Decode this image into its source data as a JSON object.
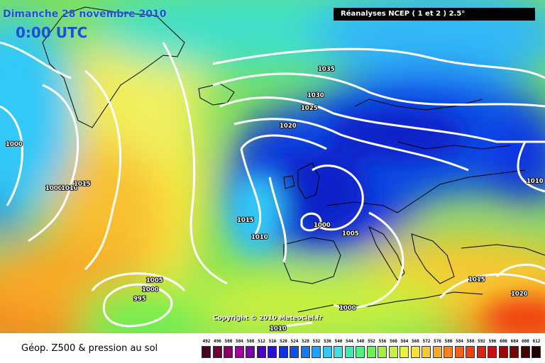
{
  "header": {
    "date": "Dimanche 28 novembre 2010",
    "time": "0:00 UTC",
    "source": "Réanalyses NCEP ( 1 et 2 ) 2.5°"
  },
  "copyright": "Copyright © 2010 Meteociel.fr",
  "footer": {
    "label": "Géop. Z500 & pression au sol"
  },
  "isobar_labels": [
    "1035",
    "1030",
    "1025",
    "1020",
    "1015",
    "1010",
    "1005",
    "1000",
    "995"
  ],
  "map_labels": [
    {
      "text": "1035"
    },
    {
      "text": "1030"
    },
    {
      "text": "1025"
    },
    {
      "text": "1020"
    },
    {
      "text": "1000"
    },
    {
      "text": "1000"
    },
    {
      "text": "1010"
    },
    {
      "text": "1015"
    },
    {
      "text": "1015"
    },
    {
      "text": "1010"
    },
    {
      "text": "1000"
    },
    {
      "text": "1005"
    },
    {
      "text": "1010"
    },
    {
      "text": "1005"
    },
    {
      "text": "1000"
    },
    {
      "text": "995"
    },
    {
      "text": "1000"
    },
    {
      "text": "1010"
    },
    {
      "text": "1015"
    },
    {
      "text": "1020"
    }
  ],
  "colors": {
    "title": "#1a4fd6",
    "high_geopotential": "#ff6a00",
    "low_geopotential": "#0a22c8",
    "isobar": "#ffffff"
  },
  "scale": {
    "values": [
      "492",
      "496",
      "500",
      "504",
      "508",
      "512",
      "516",
      "520",
      "524",
      "528",
      "532",
      "536",
      "540",
      "544",
      "548",
      "552",
      "556",
      "560",
      "564",
      "568",
      "572",
      "576",
      "580",
      "584",
      "588",
      "592",
      "596",
      "600",
      "604",
      "608",
      "612"
    ],
    "colors": [
      "#4a0026",
      "#6e0040",
      "#8a0066",
      "#a0009a",
      "#7a00b0",
      "#4a00c0",
      "#2a10d0",
      "#1030e0",
      "#1050e8",
      "#1878f0",
      "#20a0f8",
      "#30c8f8",
      "#40e0e0",
      "#40e8b0",
      "#50f080",
      "#70f050",
      "#a0f040",
      "#c8f040",
      "#e8f040",
      "#f8e040",
      "#f8c830",
      "#f8a828",
      "#f88020",
      "#f86018",
      "#f04010",
      "#e02010",
      "#c81010",
      "#a00808",
      "#780404",
      "#480202",
      "#200000"
    ]
  }
}
